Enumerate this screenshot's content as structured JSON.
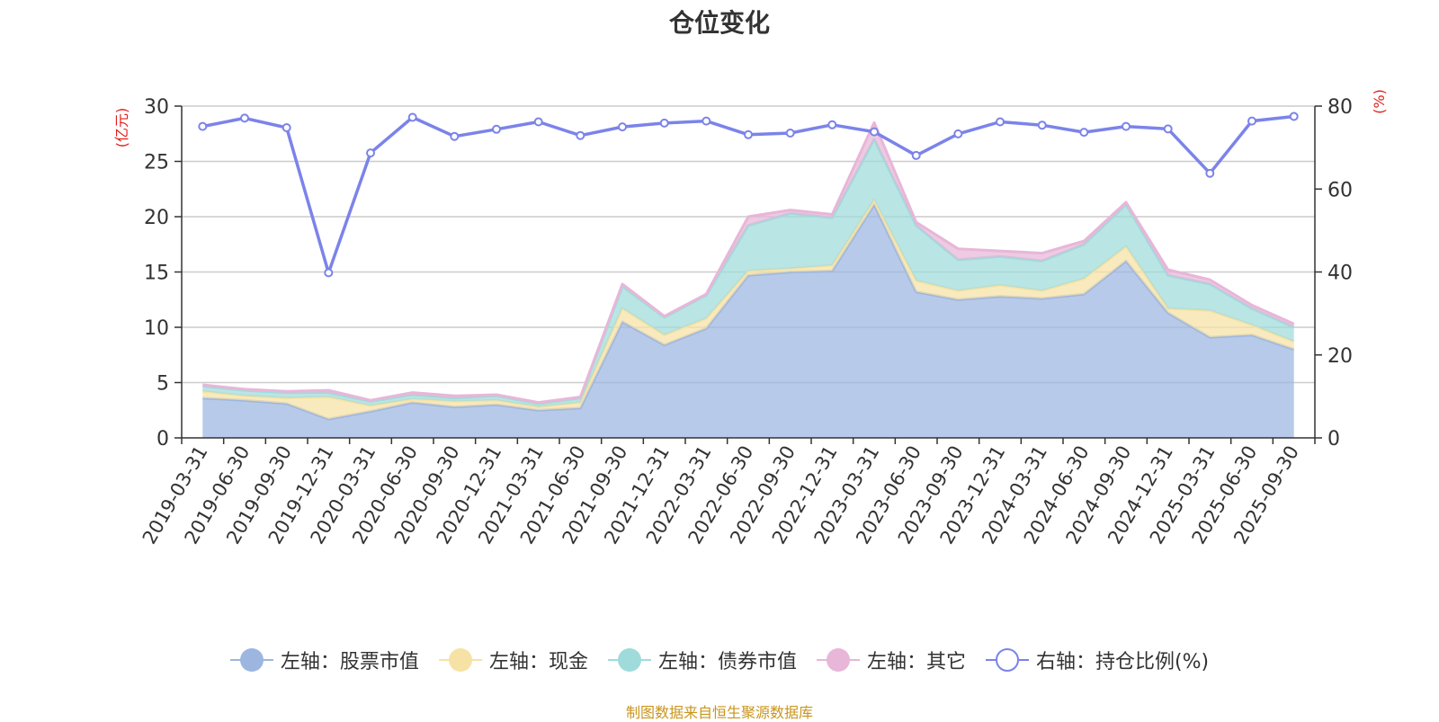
{
  "chart_data": {
    "type": "area",
    "title": "仓位变化",
    "y_left_label": "(亿元)",
    "y_right_label": "(%)",
    "y_left_range": [
      0,
      30
    ],
    "y_left_ticks": [
      "0",
      "5",
      "10",
      "15",
      "20",
      "25",
      "30"
    ],
    "y_right_range": [
      0,
      80
    ],
    "y_right_ticks": [
      "0",
      "20",
      "40",
      "60",
      "80"
    ],
    "grid": true,
    "legend_position": "bottom",
    "categories": [
      "2019-03-31",
      "2019-06-30",
      "2019-09-30",
      "2019-12-31",
      "2020-03-31",
      "2020-06-30",
      "2020-09-30",
      "2020-12-31",
      "2021-03-31",
      "2021-06-30",
      "2021-09-30",
      "2021-12-31",
      "2022-03-31",
      "2022-06-30",
      "2022-09-30",
      "2022-12-31",
      "2023-03-31",
      "2023-06-30",
      "2023-09-30",
      "2023-12-31",
      "2024-03-31",
      "2024-06-30",
      "2024-09-30",
      "2024-12-31",
      "2025-03-31",
      "2025-06-30",
      "2025-09-30"
    ],
    "series": [
      {
        "name": "左轴：股票市值",
        "axis": "left",
        "stacked": true,
        "color": "#9db6e0",
        "values": [
          3.6,
          3.4,
          3.1,
          1.7,
          2.4,
          3.2,
          2.8,
          3.0,
          2.5,
          2.7,
          10.5,
          8.4,
          9.9,
          14.7,
          15.0,
          15.1,
          21.1,
          13.2,
          12.5,
          12.8,
          12.6,
          13.0,
          16.0,
          11.3,
          9.1,
          9.3,
          8.0
        ]
      },
      {
        "name": "左轴：现金",
        "axis": "left",
        "stacked": true,
        "color": "#f7e2a5",
        "values": [
          0.6,
          0.4,
          0.5,
          2.0,
          0.5,
          0.3,
          0.5,
          0.4,
          0.3,
          0.5,
          1.2,
          0.9,
          0.9,
          0.4,
          0.3,
          0.5,
          0.4,
          1.0,
          0.8,
          1.0,
          0.7,
          1.4,
          1.3,
          0.4,
          2.4,
          0.9,
          0.7
        ]
      },
      {
        "name": "左轴：债券市值",
        "axis": "left",
        "stacked": true,
        "color": "#9fdbdb",
        "values": [
          0.5,
          0.5,
          0.5,
          0.4,
          0.4,
          0.4,
          0.3,
          0.4,
          0.3,
          0.4,
          2.0,
          1.6,
          2.1,
          4.1,
          5.0,
          4.3,
          5.5,
          5.0,
          2.8,
          2.6,
          2.7,
          3.1,
          3.8,
          3.0,
          2.4,
          1.5,
          1.3
        ]
      },
      {
        "name": "左轴：其它",
        "axis": "left",
        "stacked": true,
        "color": "#e8b6d8",
        "values": [
          0.1,
          0.1,
          0.1,
          0.2,
          0.1,
          0.2,
          0.2,
          0.1,
          0.1,
          0.1,
          0.2,
          0.1,
          0.1,
          0.8,
          0.3,
          0.3,
          1.5,
          0.3,
          1.0,
          0.5,
          0.7,
          0.3,
          0.2,
          0.5,
          0.4,
          0.3,
          0.3
        ]
      },
      {
        "name": "右轴：持仓比例(%)",
        "axis": "right",
        "stacked": false,
        "color": "#7b83ea",
        "values": [
          75.1,
          77.1,
          74.8,
          39.8,
          68.7,
          77.3,
          72.7,
          74.4,
          76.2,
          72.9,
          75.0,
          75.9,
          76.4,
          73.1,
          73.5,
          75.5,
          73.8,
          68.1,
          73.3,
          76.2,
          75.4,
          73.7,
          75.1,
          74.5,
          63.8,
          76.4,
          77.5
        ]
      }
    ]
  },
  "legend": {
    "items": [
      {
        "label": "左轴：股票市值",
        "color": "#9db6e0",
        "hollow": false
      },
      {
        "label": "左轴：现金",
        "color": "#f7e2a5",
        "hollow": false
      },
      {
        "label": "左轴：债券市值",
        "color": "#9fdbdb",
        "hollow": false
      },
      {
        "label": "左轴：其它",
        "color": "#e8b6d8",
        "hollow": false
      },
      {
        "label": "右轴：持仓比例(%)",
        "color": "#7b83ea",
        "hollow": true
      }
    ]
  },
  "footer": {
    "source": "制图数据来自恒生聚源数据库"
  }
}
